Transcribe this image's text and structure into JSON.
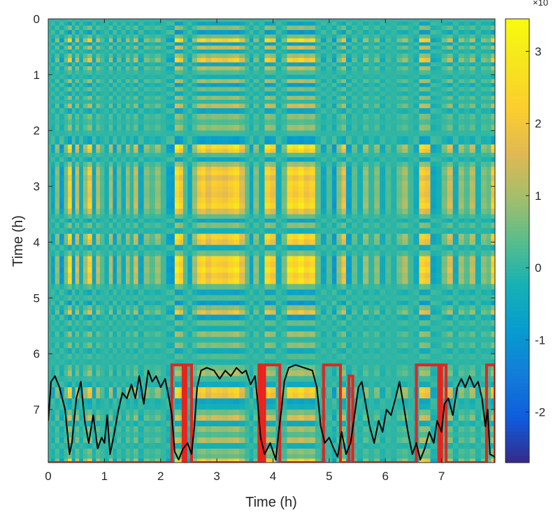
{
  "chart_data": {
    "type": "heatmap",
    "title": "",
    "xlabel": "Time (h)",
    "ylabel": "Time (h)",
    "xlim": [
      0,
      7.95
    ],
    "ylim": [
      0,
      7.95
    ],
    "y_reversed": true,
    "xticks": [
      "0",
      "1",
      "2",
      "3",
      "4",
      "5",
      "6",
      "7"
    ],
    "yticks": [
      "0",
      "1",
      "2",
      "3",
      "4",
      "5",
      "6",
      "7"
    ],
    "colormap": "parula",
    "colorbar": {
      "min": -2.7,
      "max": 3.45,
      "ticks": [
        "-2",
        "-1",
        "0",
        "1",
        "2",
        "3"
      ],
      "exponent_label": "×10"
    },
    "band_profile": [
      {
        "t": 0.0,
        "v": 0.1
      },
      {
        "t": 0.05,
        "v": -0.4
      },
      {
        "t": 0.12,
        "v": 0.5
      },
      {
        "t": 0.2,
        "v": -0.6
      },
      {
        "t": 0.28,
        "v": 0.4
      },
      {
        "t": 0.35,
        "v": 1.6
      },
      {
        "t": 0.42,
        "v": -0.5
      },
      {
        "t": 0.48,
        "v": 0.9
      },
      {
        "t": 0.55,
        "v": -0.3
      },
      {
        "t": 0.62,
        "v": 0.6
      },
      {
        "t": 0.7,
        "v": 1.4
      },
      {
        "t": 0.78,
        "v": -0.4
      },
      {
        "t": 0.85,
        "v": 0.8
      },
      {
        "t": 0.92,
        "v": 0.2
      },
      {
        "t": 1.0,
        "v": -0.2
      },
      {
        "t": 1.08,
        "v": 0.7
      },
      {
        "t": 1.15,
        "v": -0.5
      },
      {
        "t": 1.22,
        "v": 0.4
      },
      {
        "t": 1.3,
        "v": -0.3
      },
      {
        "t": 1.38,
        "v": 0.6
      },
      {
        "t": 1.45,
        "v": 0.0
      },
      {
        "t": 1.52,
        "v": 0.9
      },
      {
        "t": 1.6,
        "v": -0.4
      },
      {
        "t": 1.7,
        "v": 0.5
      },
      {
        "t": 1.8,
        "v": 0.2
      },
      {
        "t": 1.9,
        "v": 0.6
      },
      {
        "t": 2.0,
        "v": 0.1
      },
      {
        "t": 2.1,
        "v": -0.5
      },
      {
        "t": 2.18,
        "v": -0.6
      },
      {
        "t": 2.25,
        "v": 1.8
      },
      {
        "t": 2.33,
        "v": 1.4
      },
      {
        "t": 2.4,
        "v": 0.2
      },
      {
        "t": 2.48,
        "v": -0.4
      },
      {
        "t": 2.56,
        "v": 0.6
      },
      {
        "t": 2.65,
        "v": 1.4
      },
      {
        "t": 2.72,
        "v": 1.6
      },
      {
        "t": 2.8,
        "v": 1.2
      },
      {
        "t": 2.9,
        "v": 1.5
      },
      {
        "t": 3.0,
        "v": 1.4
      },
      {
        "t": 3.1,
        "v": 1.3
      },
      {
        "t": 3.2,
        "v": 1.5
      },
      {
        "t": 3.3,
        "v": 1.7
      },
      {
        "t": 3.4,
        "v": 1.1
      },
      {
        "t": 3.5,
        "v": 0.3
      },
      {
        "t": 3.58,
        "v": -0.4
      },
      {
        "t": 3.65,
        "v": 0.5
      },
      {
        "t": 3.75,
        "v": -0.2
      },
      {
        "t": 3.85,
        "v": 1.6
      },
      {
        "t": 3.95,
        "v": 1.3
      },
      {
        "t": 4.05,
        "v": -0.3
      },
      {
        "t": 4.15,
        "v": 0.4
      },
      {
        "t": 4.25,
        "v": 1.7
      },
      {
        "t": 4.35,
        "v": 1.5
      },
      {
        "t": 4.45,
        "v": 1.8
      },
      {
        "t": 4.55,
        "v": 1.4
      },
      {
        "t": 4.65,
        "v": 1.6
      },
      {
        "t": 4.75,
        "v": 0.3
      },
      {
        "t": 4.85,
        "v": -0.4
      },
      {
        "t": 4.95,
        "v": 0.2
      },
      {
        "t": 5.05,
        "v": -0.6
      },
      {
        "t": 5.13,
        "v": 0.5
      },
      {
        "t": 5.22,
        "v": 1.2
      },
      {
        "t": 5.3,
        "v": -0.5
      },
      {
        "t": 5.4,
        "v": 0.3
      },
      {
        "t": 5.5,
        "v": -0.2
      },
      {
        "t": 5.6,
        "v": 0.6
      },
      {
        "t": 5.7,
        "v": 0.0
      },
      {
        "t": 5.8,
        "v": 0.5
      },
      {
        "t": 5.9,
        "v": -0.3
      },
      {
        "t": 6.0,
        "v": 0.2
      },
      {
        "t": 6.1,
        "v": -0.1
      },
      {
        "t": 6.2,
        "v": 0.4
      },
      {
        "t": 6.3,
        "v": 0.7
      },
      {
        "t": 6.4,
        "v": 0.1
      },
      {
        "t": 6.5,
        "v": -0.3
      },
      {
        "t": 6.6,
        "v": 1.5
      },
      {
        "t": 6.7,
        "v": 1.3
      },
      {
        "t": 6.8,
        "v": -0.4
      },
      {
        "t": 6.9,
        "v": -0.2
      },
      {
        "t": 7.0,
        "v": 0.4
      },
      {
        "t": 7.1,
        "v": 1.0
      },
      {
        "t": 7.2,
        "v": -0.3
      },
      {
        "t": 7.3,
        "v": 0.6
      },
      {
        "t": 7.4,
        "v": 0.2
      },
      {
        "t": 7.5,
        "v": 0.8
      },
      {
        "t": 7.6,
        "v": -0.2
      },
      {
        "t": 7.7,
        "v": 0.5
      },
      {
        "t": 7.8,
        "v": 0.3
      },
      {
        "t": 7.88,
        "v": 1.4
      }
    ],
    "overlay_black": [
      {
        "x": 0.0,
        "y": 7.2
      },
      {
        "x": 0.05,
        "y": 6.5
      },
      {
        "x": 0.12,
        "y": 6.4
      },
      {
        "x": 0.2,
        "y": 6.6
      },
      {
        "x": 0.3,
        "y": 7.0
      },
      {
        "x": 0.38,
        "y": 7.8
      },
      {
        "x": 0.42,
        "y": 7.6
      },
      {
        "x": 0.5,
        "y": 6.8
      },
      {
        "x": 0.58,
        "y": 6.5
      },
      {
        "x": 0.65,
        "y": 7.2
      },
      {
        "x": 0.72,
        "y": 7.6
      },
      {
        "x": 0.8,
        "y": 7.1
      },
      {
        "x": 0.88,
        "y": 7.7
      },
      {
        "x": 0.95,
        "y": 7.5
      },
      {
        "x": 1.0,
        "y": 7.6
      },
      {
        "x": 1.05,
        "y": 7.1
      },
      {
        "x": 1.1,
        "y": 7.8
      },
      {
        "x": 1.18,
        "y": 7.4
      },
      {
        "x": 1.25,
        "y": 7.0
      },
      {
        "x": 1.32,
        "y": 6.7
      },
      {
        "x": 1.4,
        "y": 6.8
      },
      {
        "x": 1.48,
        "y": 6.55
      },
      {
        "x": 1.55,
        "y": 6.8
      },
      {
        "x": 1.62,
        "y": 6.4
      },
      {
        "x": 1.7,
        "y": 6.9
      },
      {
        "x": 1.78,
        "y": 6.3
      },
      {
        "x": 1.85,
        "y": 6.5
      },
      {
        "x": 1.92,
        "y": 6.4
      },
      {
        "x": 2.0,
        "y": 6.6
      },
      {
        "x": 2.08,
        "y": 6.45
      },
      {
        "x": 2.15,
        "y": 6.8
      },
      {
        "x": 2.2,
        "y": 7.1
      },
      {
        "x": 2.25,
        "y": 7.75
      },
      {
        "x": 2.32,
        "y": 7.9
      },
      {
        "x": 2.4,
        "y": 7.7
      },
      {
        "x": 2.48,
        "y": 7.6
      },
      {
        "x": 2.55,
        "y": 7.8
      },
      {
        "x": 2.6,
        "y": 7.3
      },
      {
        "x": 2.65,
        "y": 6.6
      },
      {
        "x": 2.72,
        "y": 6.3
      },
      {
        "x": 2.82,
        "y": 6.25
      },
      {
        "x": 2.95,
        "y": 6.3
      },
      {
        "x": 3.05,
        "y": 6.45
      },
      {
        "x": 3.15,
        "y": 6.3
      },
      {
        "x": 3.25,
        "y": 6.4
      },
      {
        "x": 3.35,
        "y": 6.25
      },
      {
        "x": 3.45,
        "y": 6.35
      },
      {
        "x": 3.52,
        "y": 6.3
      },
      {
        "x": 3.6,
        "y": 6.55
      },
      {
        "x": 3.68,
        "y": 6.4
      },
      {
        "x": 3.72,
        "y": 6.8
      },
      {
        "x": 3.78,
        "y": 7.5
      },
      {
        "x": 3.85,
        "y": 7.8
      },
      {
        "x": 3.95,
        "y": 7.6
      },
      {
        "x": 4.05,
        "y": 7.9
      },
      {
        "x": 4.1,
        "y": 7.4
      },
      {
        "x": 4.15,
        "y": 7.0
      },
      {
        "x": 4.2,
        "y": 6.5
      },
      {
        "x": 4.28,
        "y": 6.25
      },
      {
        "x": 4.4,
        "y": 6.2
      },
      {
        "x": 4.55,
        "y": 6.25
      },
      {
        "x": 4.7,
        "y": 6.3
      },
      {
        "x": 4.78,
        "y": 6.6
      },
      {
        "x": 4.85,
        "y": 7.3
      },
      {
        "x": 4.92,
        "y": 7.6
      },
      {
        "x": 5.0,
        "y": 7.5
      },
      {
        "x": 5.08,
        "y": 7.7
      },
      {
        "x": 5.15,
        "y": 7.85
      },
      {
        "x": 5.22,
        "y": 7.4
      },
      {
        "x": 5.3,
        "y": 7.8
      },
      {
        "x": 5.38,
        "y": 7.6
      },
      {
        "x": 5.45,
        "y": 7.1
      },
      {
        "x": 5.52,
        "y": 6.6
      },
      {
        "x": 5.58,
        "y": 6.5
      },
      {
        "x": 5.65,
        "y": 6.9
      },
      {
        "x": 5.72,
        "y": 7.3
      },
      {
        "x": 5.8,
        "y": 7.6
      },
      {
        "x": 5.88,
        "y": 7.2
      },
      {
        "x": 5.95,
        "y": 7.4
      },
      {
        "x": 6.02,
        "y": 7.0
      },
      {
        "x": 6.1,
        "y": 7.1
      },
      {
        "x": 6.18,
        "y": 6.8
      },
      {
        "x": 6.25,
        "y": 6.5
      },
      {
        "x": 6.32,
        "y": 6.9
      },
      {
        "x": 6.4,
        "y": 7.4
      },
      {
        "x": 6.48,
        "y": 7.8
      },
      {
        "x": 6.55,
        "y": 7.6
      },
      {
        "x": 6.62,
        "y": 7.9
      },
      {
        "x": 6.7,
        "y": 7.7
      },
      {
        "x": 6.78,
        "y": 7.4
      },
      {
        "x": 6.86,
        "y": 7.6
      },
      {
        "x": 6.92,
        "y": 7.2
      },
      {
        "x": 7.0,
        "y": 7.4
      },
      {
        "x": 7.05,
        "y": 6.9
      },
      {
        "x": 7.12,
        "y": 6.8
      },
      {
        "x": 7.2,
        "y": 7.1
      },
      {
        "x": 7.28,
        "y": 6.6
      },
      {
        "x": 7.35,
        "y": 6.45
      },
      {
        "x": 7.42,
        "y": 6.6
      },
      {
        "x": 7.5,
        "y": 6.4
      },
      {
        "x": 7.58,
        "y": 6.6
      },
      {
        "x": 7.65,
        "y": 6.5
      },
      {
        "x": 7.72,
        "y": 6.8
      },
      {
        "x": 7.78,
        "y": 7.3
      },
      {
        "x": 7.82,
        "y": 7.0
      },
      {
        "x": 7.86,
        "y": 7.8
      },
      {
        "x": 7.95,
        "y": 7.85
      }
    ],
    "overlay_red": [
      {
        "x": 0.0,
        "y": 7.95
      },
      {
        "x": 2.2,
        "y": 7.95
      },
      {
        "x": 2.2,
        "y": 6.2
      },
      {
        "x": 2.4,
        "y": 6.2
      },
      {
        "x": 2.4,
        "y": 7.95
      },
      {
        "x": 2.45,
        "y": 7.95
      },
      {
        "x": 2.45,
        "y": 6.2
      },
      {
        "x": 2.55,
        "y": 6.2
      },
      {
        "x": 2.55,
        "y": 7.95
      },
      {
        "x": 3.75,
        "y": 7.95
      },
      {
        "x": 3.75,
        "y": 6.2
      },
      {
        "x": 3.8,
        "y": 6.2
      },
      {
        "x": 3.8,
        "y": 7.95
      },
      {
        "x": 3.85,
        "y": 7.95
      },
      {
        "x": 3.85,
        "y": 6.2
      },
      {
        "x": 4.12,
        "y": 6.2
      },
      {
        "x": 4.12,
        "y": 7.95
      },
      {
        "x": 4.9,
        "y": 7.95
      },
      {
        "x": 4.9,
        "y": 6.2
      },
      {
        "x": 5.2,
        "y": 6.2
      },
      {
        "x": 5.2,
        "y": 7.95
      },
      {
        "x": 5.35,
        "y": 7.95
      },
      {
        "x": 5.35,
        "y": 6.4
      },
      {
        "x": 5.42,
        "y": 6.4
      },
      {
        "x": 5.42,
        "y": 7.95
      },
      {
        "x": 6.55,
        "y": 7.95
      },
      {
        "x": 6.55,
        "y": 6.2
      },
      {
        "x": 6.95,
        "y": 6.2
      },
      {
        "x": 6.95,
        "y": 7.95
      },
      {
        "x": 7.0,
        "y": 7.95
      },
      {
        "x": 7.0,
        "y": 6.2
      },
      {
        "x": 7.08,
        "y": 6.2
      },
      {
        "x": 7.08,
        "y": 7.95
      },
      {
        "x": 7.8,
        "y": 7.95
      },
      {
        "x": 7.8,
        "y": 6.2
      },
      {
        "x": 7.95,
        "y": 6.2
      },
      {
        "x": 7.95,
        "y": 7.95
      }
    ]
  }
}
